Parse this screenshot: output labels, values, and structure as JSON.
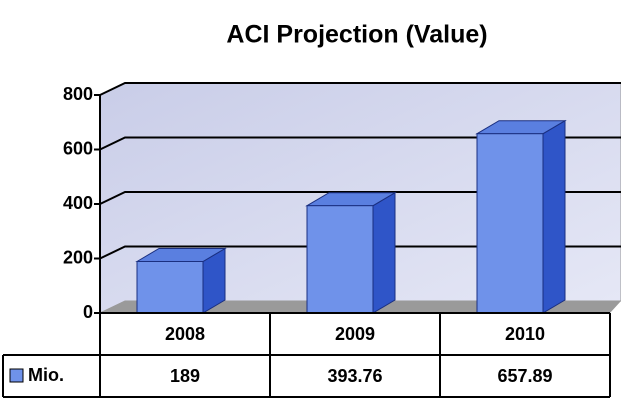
{
  "chart_data": {
    "type": "bar",
    "title": "ACI Projection (Value)",
    "categories": [
      "2008",
      "2009",
      "2010"
    ],
    "series": [
      {
        "name": "Mio.",
        "color": "#6f92ea",
        "values": [
          189,
          393.76,
          657.89
        ]
      }
    ],
    "ylim": [
      0,
      800
    ],
    "yticks": [
      0,
      200,
      400,
      600,
      800
    ],
    "grid": true
  }
}
